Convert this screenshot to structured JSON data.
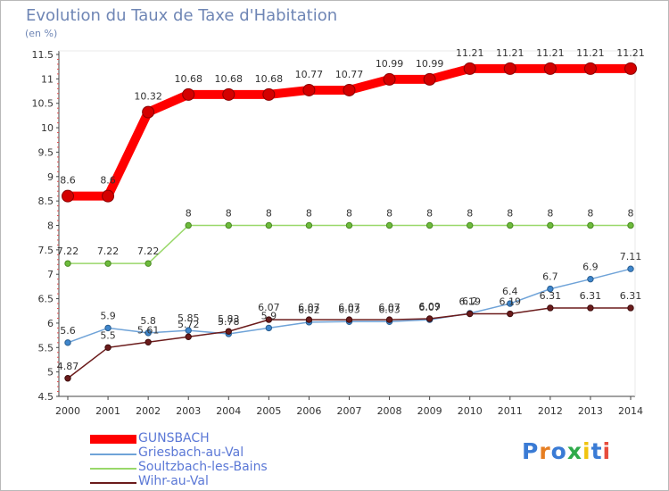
{
  "title": "Evolution du Taux de Taxe d'Habitation",
  "unit_label": "(en %)",
  "logo": "Proxiti",
  "colors": {
    "GUNSBACH": "#ff0000",
    "Griesbach-au-Val": "#6fa3d8",
    "Soultzbach-les-Bains": "#99d86a",
    "Wihr-au-Val": "#6b1b1b",
    "title": "#6f86b5",
    "legend_text": "#5b78d6"
  },
  "chart_data": {
    "type": "line",
    "title": "Evolution du Taux de Taxe d'Habitation",
    "ylabel": "(en %)",
    "x": [
      "2000",
      "2001",
      "2002",
      "2003",
      "2004",
      "2005",
      "2006",
      "2007",
      "2008",
      "2009",
      "2010",
      "2011",
      "2012",
      "2013",
      "2014"
    ],
    "ylim": [
      4.5,
      11.5
    ],
    "yticks": [
      "4.5",
      "5",
      "5.5",
      "6",
      "6.5",
      "7",
      "7.5",
      "8",
      "8.5",
      "9",
      "9.5",
      "10",
      "10.5",
      "11",
      "11.5"
    ],
    "grid": false,
    "legend_position": "bottom-left",
    "series": [
      {
        "name": "GUNSBACH",
        "values": [
          8.6,
          8.6,
          10.32,
          10.68,
          10.68,
          10.68,
          10.77,
          10.77,
          10.99,
          10.99,
          11.21,
          11.21,
          11.21,
          11.21,
          11.21
        ],
        "labels": [
          "8.6",
          "8.6",
          "10.32",
          "10.68",
          "10.68",
          "10.68",
          "10.77",
          "10.77",
          "10.99",
          "10.99",
          "11.21",
          "11.21",
          "11.21",
          "11.21",
          "11.21"
        ]
      },
      {
        "name": "Griesbach-au-Val",
        "values": [
          5.6,
          5.9,
          5.8,
          5.85,
          5.78,
          5.9,
          6.02,
          6.03,
          6.03,
          6.07,
          6.2,
          6.4,
          6.7,
          6.9,
          7.11
        ],
        "labels": [
          "5.6",
          "5.9",
          "5.8",
          "5.85",
          "5.78",
          "5.9",
          "6.02",
          "6.03",
          "6.03",
          "6.07",
          "6.2",
          "6.4",
          "6.7",
          "6.9",
          "7.11"
        ]
      },
      {
        "name": "Soultzbach-les-Bains",
        "values": [
          7.22,
          7.22,
          7.22,
          8,
          8,
          8,
          8,
          8,
          8,
          8,
          8,
          8,
          8,
          8,
          8
        ],
        "labels": [
          "7.22",
          "7.22",
          "7.22",
          "8",
          "8",
          "8",
          "8",
          "8",
          "8",
          "8",
          "8",
          "8",
          "8",
          "8",
          "8"
        ]
      },
      {
        "name": "Wihr-au-Val",
        "values": [
          4.87,
          5.5,
          5.61,
          5.72,
          5.83,
          6.07,
          6.07,
          6.07,
          6.07,
          6.09,
          6.19,
          6.19,
          6.31,
          6.31,
          6.31
        ],
        "labels": [
          "4.87",
          "5.5",
          "5.61",
          "5.72",
          "5.83",
          "6.07",
          "6.07",
          "6.07",
          "6.07",
          "6.09",
          "6.19",
          "6.19",
          "6.31",
          "6.31",
          "6.31"
        ]
      }
    ]
  }
}
